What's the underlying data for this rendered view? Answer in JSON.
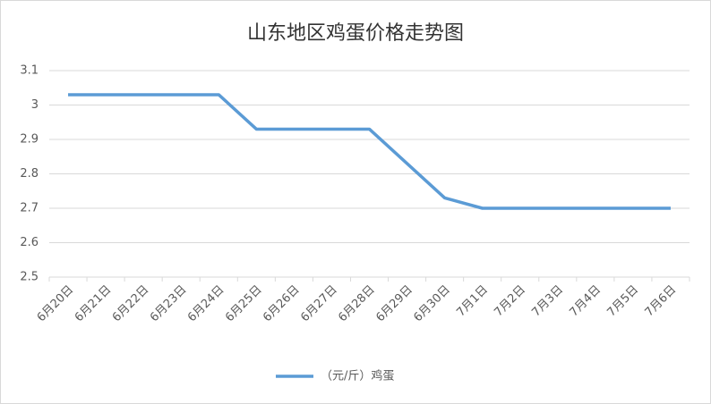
{
  "chart_data": {
    "type": "line",
    "title": "山东地区鸡蛋价格走势图",
    "categories": [
      "6月20日",
      "6月21日",
      "6月22日",
      "6月23日",
      "6月24日",
      "6月25日",
      "6月26日",
      "6月27日",
      "6月28日",
      "6月29日",
      "6月30日",
      "7月1日",
      "7月2日",
      "7月3日",
      "7月4日",
      "7月5日",
      "7月6日"
    ],
    "series": [
      {
        "name": "（元/斤）鸡蛋",
        "color": "#5b9bd5",
        "values": [
          3.03,
          3.03,
          3.03,
          3.03,
          3.03,
          2.93,
          2.93,
          2.93,
          2.93,
          2.83,
          2.73,
          2.7,
          2.7,
          2.7,
          2.7,
          2.7,
          2.7
        ]
      }
    ],
    "ylim": [
      2.5,
      3.1
    ],
    "yticks": [
      2.5,
      2.6,
      2.7,
      2.8,
      2.9,
      3,
      3.1
    ],
    "grid": true,
    "legend": "bottom"
  }
}
